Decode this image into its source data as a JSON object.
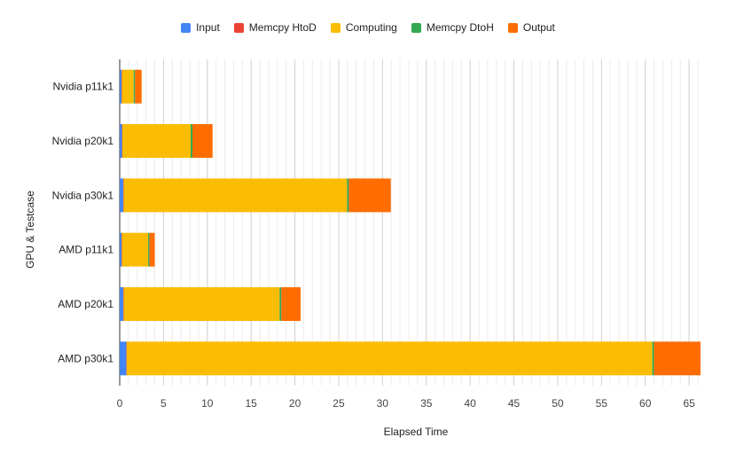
{
  "chart_data": {
    "type": "bar",
    "orientation": "horizontal",
    "stacked": true,
    "title": "",
    "xlabel": "Elapsed Time",
    "ylabel": "GPU & Testcase",
    "xlim": [
      0,
      66
    ],
    "x_ticks": [
      0,
      5,
      10,
      15,
      20,
      25,
      30,
      35,
      40,
      45,
      50,
      55,
      60,
      65
    ],
    "grid": true,
    "legend_position": "top",
    "categories": [
      "Nvidia p11k1",
      "Nvidia p20k1",
      "Nvidia p30k1",
      "AMD p11k1",
      "AMD p20k1",
      "AMD p30k1"
    ],
    "series": [
      {
        "name": "Input",
        "color": "#4285F4",
        "values": [
          0.2,
          0.25,
          0.4,
          0.2,
          0.4,
          0.75
        ]
      },
      {
        "name": "Memcpy HtoD",
        "color": "#EA4335",
        "values": [
          0.05,
          0.05,
          0.05,
          0.05,
          0.05,
          0.05
        ]
      },
      {
        "name": "Computing",
        "color": "#FBBC04",
        "values": [
          1.35,
          7.8,
          25.5,
          3.0,
          17.8,
          60.0
        ]
      },
      {
        "name": "Memcpy DtoH",
        "color": "#34A853",
        "values": [
          0.15,
          0.2,
          0.2,
          0.15,
          0.2,
          0.2
        ]
      },
      {
        "name": "Output",
        "color": "#FF6D01",
        "values": [
          0.75,
          2.3,
          4.8,
          0.6,
          2.2,
          5.3
        ]
      }
    ]
  }
}
